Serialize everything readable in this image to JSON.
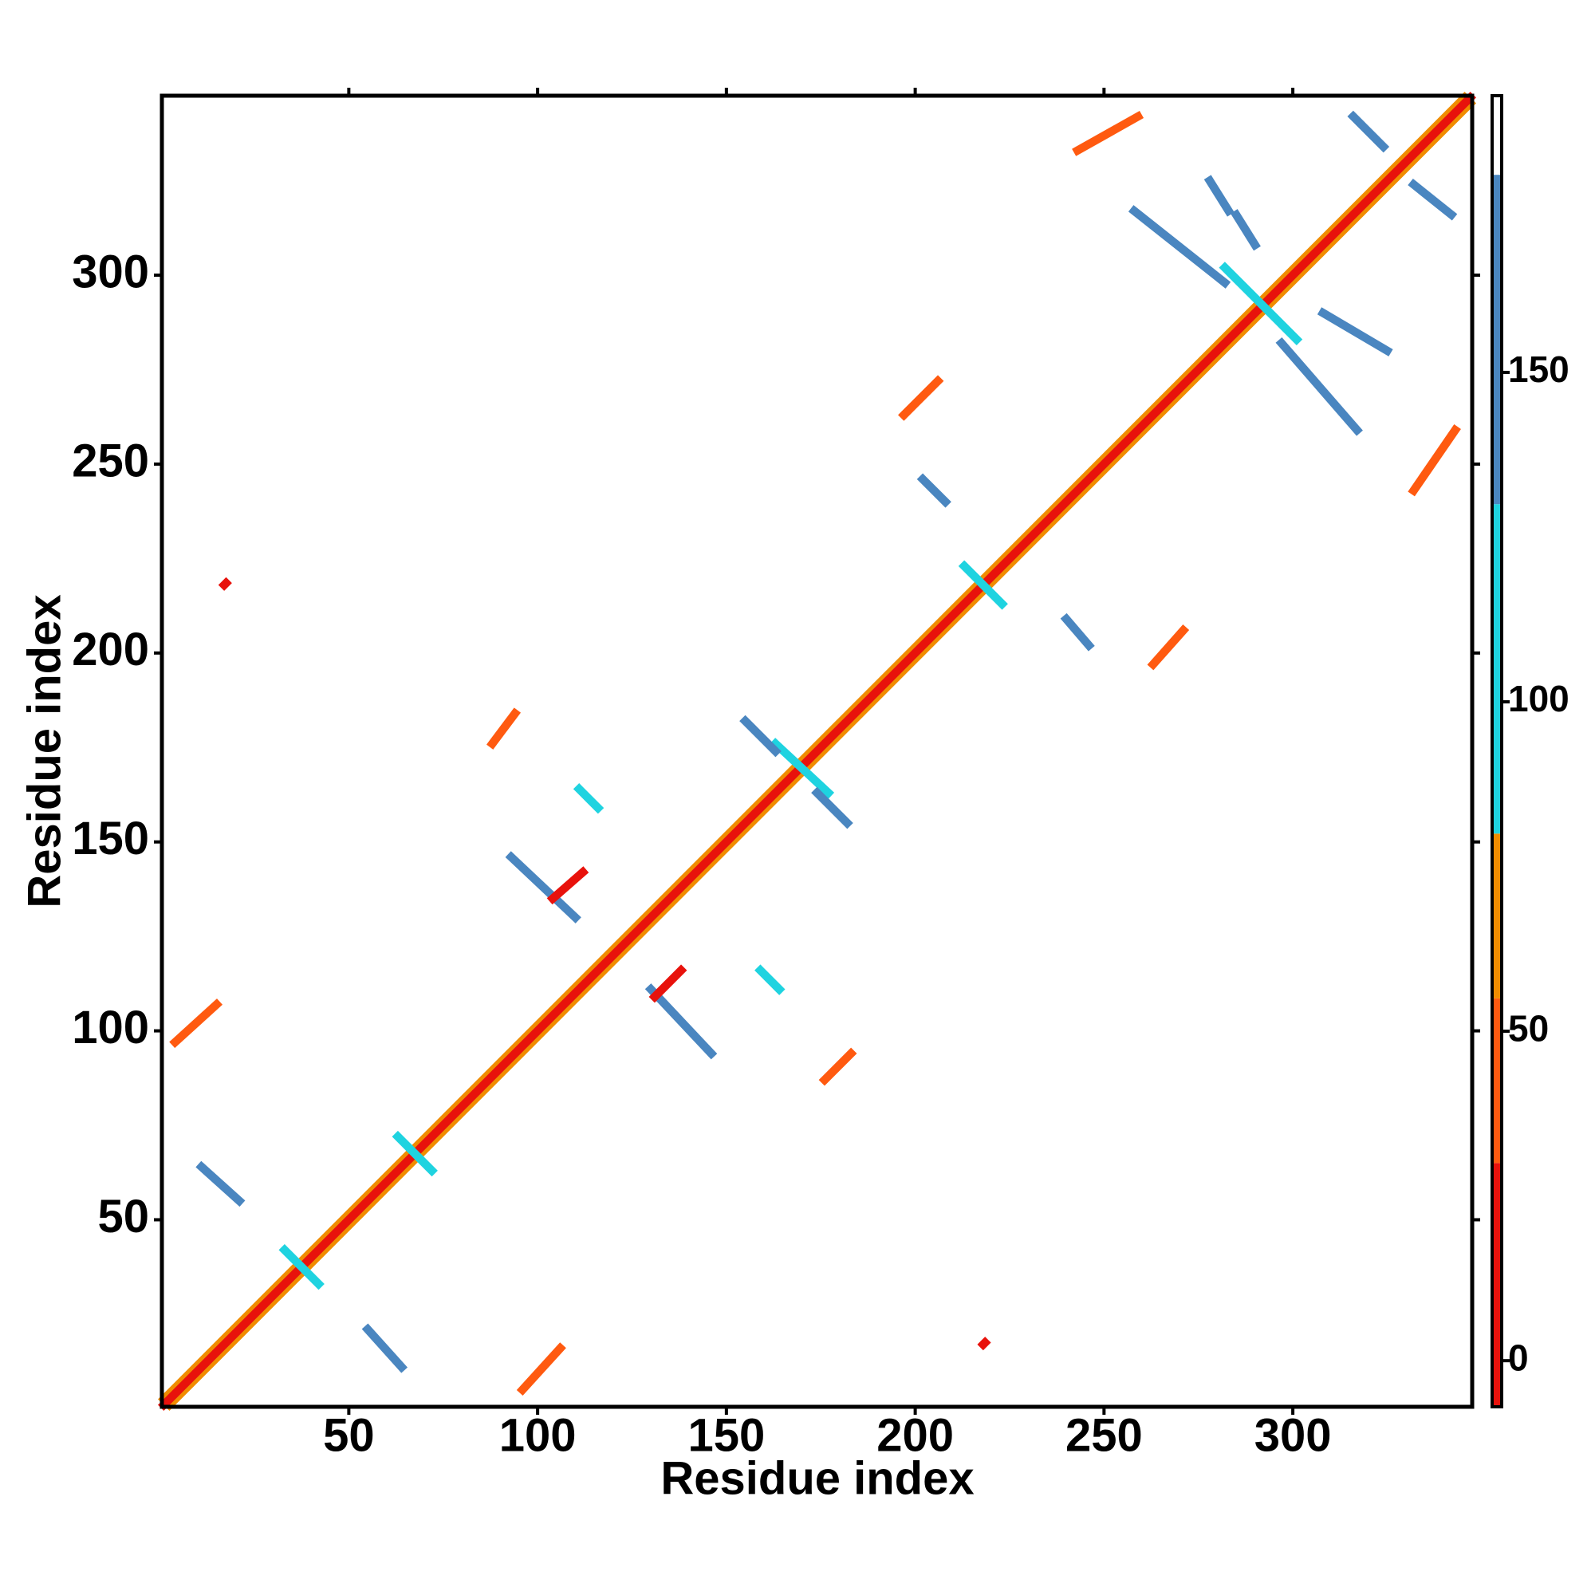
{
  "chart_data": {
    "type": "contact_map",
    "xlabel": "Residue index",
    "ylabel": "Residue index",
    "xlim": [
      0.5,
      347.5
    ],
    "ylim": [
      0.5,
      347.5
    ],
    "xticks": [
      50,
      100,
      150,
      200,
      250,
      300
    ],
    "yticks": [
      50,
      100,
      150,
      200,
      250,
      300
    ],
    "colorbar": {
      "clim": [
        -7,
        192
      ],
      "ticks": [
        0,
        50,
        100,
        150
      ],
      "bands": [
        {
          "from": -7,
          "to": 30,
          "color": "#e8120c"
        },
        {
          "from": 30,
          "to": 55,
          "color": "#ff5a10"
        },
        {
          "from": 55,
          "to": 80,
          "color": "#f08c00"
        },
        {
          "from": 80,
          "to": 130,
          "color": "#1fd3e0"
        },
        {
          "from": 130,
          "to": 180,
          "color": "#4a86c0"
        },
        {
          "from": 180,
          "to": 192,
          "color": "#ffffff"
        }
      ]
    },
    "segments": [
      {
        "x0": 1,
        "y0": 2.5,
        "x1": 345.5,
        "y1": 347,
        "value": 60
      },
      {
        "x0": 2.5,
        "y0": 1,
        "x1": 347,
        "y1": 345.5,
        "value": 60
      },
      {
        "x0": 1,
        "y0": 1,
        "x1": 347,
        "y1": 347,
        "value": 10
      },
      {
        "x0": 33,
        "y0": 42,
        "x1": 42,
        "y1": 33,
        "value": 110
      },
      {
        "x0": 63,
        "y0": 72,
        "x1": 72,
        "y1": 63,
        "value": 110
      },
      {
        "x0": 163,
        "y0": 176,
        "x1": 177,
        "y1": 163,
        "value": 110
      },
      {
        "x0": 213,
        "y0": 223,
        "x1": 223,
        "y1": 213,
        "value": 110
      },
      {
        "x0": 282,
        "y0": 302,
        "x1": 301,
        "y1": 283,
        "value": 110
      },
      {
        "x0": 4,
        "y0": 97,
        "x1": 15,
        "y1": 107,
        "value": 40
      },
      {
        "x0": 96,
        "y0": 5,
        "x1": 106,
        "y1": 16,
        "value": 40
      },
      {
        "x0": 11,
        "y0": 64,
        "x1": 21,
        "y1": 55,
        "value": 155
      },
      {
        "x0": 55,
        "y0": 21,
        "x1": 64,
        "y1": 11,
        "value": 155
      },
      {
        "x0": 88,
        "y0": 176,
        "x1": 94,
        "y1": 184,
        "value": 40
      },
      {
        "x0": 176,
        "y0": 87,
        "x1": 183,
        "y1": 94,
        "value": 40
      },
      {
        "x0": 93,
        "y0": 146,
        "x1": 110,
        "y1": 130,
        "value": 155
      },
      {
        "x0": 130,
        "y0": 111,
        "x1": 146,
        "y1": 94,
        "value": 155
      },
      {
        "x0": 111,
        "y0": 164,
        "x1": 116,
        "y1": 159,
        "value": 110
      },
      {
        "x0": 159,
        "y0": 116,
        "x1": 164,
        "y1": 111,
        "value": 110
      },
      {
        "x0": 155,
        "y0": 182,
        "x1": 163,
        "y1": 174,
        "value": 155
      },
      {
        "x0": 174,
        "y0": 163,
        "x1": 182,
        "y1": 155,
        "value": 155
      },
      {
        "x0": 197,
        "y0": 263,
        "x1": 206,
        "y1": 272,
        "value": 40
      },
      {
        "x0": 263,
        "y0": 197,
        "x1": 271,
        "y1": 206,
        "value": 40
      },
      {
        "x0": 202,
        "y0": 246,
        "x1": 208,
        "y1": 240,
        "value": 155
      },
      {
        "x0": 240,
        "y0": 209,
        "x1": 246,
        "y1": 202,
        "value": 155
      },
      {
        "x0": 243,
        "y0": 333,
        "x1": 259,
        "y1": 342,
        "value": 40
      },
      {
        "x0": 332,
        "y0": 243,
        "x1": 343,
        "y1": 259,
        "value": 40
      },
      {
        "x0": 258,
        "y0": 317,
        "x1": 282,
        "y1": 298,
        "value": 155
      },
      {
        "x0": 297,
        "y0": 282,
        "x1": 317,
        "y1": 259,
        "value": 155
      },
      {
        "x0": 278,
        "y0": 325,
        "x1": 283,
        "y1": 317,
        "value": 155
      },
      {
        "x0": 285,
        "y0": 316,
        "x1": 290,
        "y1": 308,
        "value": 155
      },
      {
        "x0": 308,
        "y0": 290,
        "x1": 325,
        "y1": 280,
        "value": 155
      },
      {
        "x0": 316,
        "y0": 342,
        "x1": 324,
        "y1": 334,
        "value": 155
      },
      {
        "x0": 332,
        "y0": 324,
        "x1": 342,
        "y1": 316,
        "value": 155
      },
      {
        "x0": 104,
        "y0": 135,
        "x1": 112,
        "y1": 142,
        "value": 10
      },
      {
        "x0": 131,
        "y0": 109,
        "x1": 138,
        "y1": 116,
        "value": 10
      },
      {
        "x0": 17,
        "y0": 218,
        "x1": 17.5,
        "y1": 218.5,
        "value": 10
      },
      {
        "x0": 218,
        "y0": 17,
        "x1": 218.5,
        "y1": 17.5,
        "value": 10
      }
    ]
  }
}
